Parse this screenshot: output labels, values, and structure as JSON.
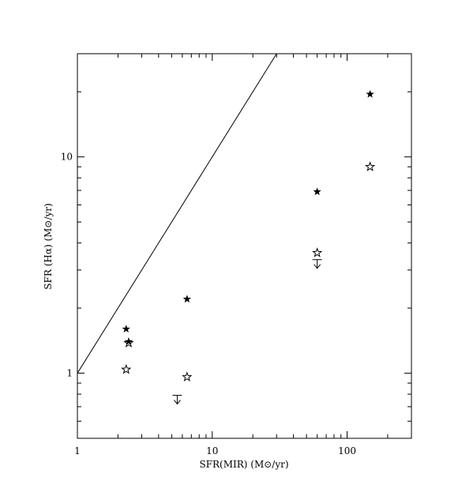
{
  "chart_data": {
    "type": "scatter",
    "title": "",
    "xlabel": "SFR(MIR)  (M⊙/yr)",
    "ylabel": "SFR (Hα)  (M⊙/yr)",
    "x_scale": "log",
    "y_scale": "log",
    "xlim": [
      1,
      300
    ],
    "ylim": [
      0.5,
      30
    ],
    "x_tick_labels": [
      "1",
      "10",
      "100"
    ],
    "y_tick_labels": [
      "1",
      "10"
    ],
    "grid": false,
    "reference_line": {
      "slope": 1,
      "intercept": 0,
      "description": "y = x"
    },
    "series": [
      {
        "marker": "filled-star",
        "points": [
          {
            "x": 2.3,
            "y": 1.6
          },
          {
            "x": 2.4,
            "y": 1.4
          },
          {
            "x": 6.5,
            "y": 2.2
          },
          {
            "x": 60,
            "y": 6.9
          },
          {
            "x": 148,
            "y": 19.5
          }
        ]
      },
      {
        "marker": "open-star",
        "points": [
          {
            "x": 2.4,
            "y": 1.38
          },
          {
            "x": 2.3,
            "y": 1.04
          },
          {
            "x": 6.5,
            "y": 0.96
          },
          {
            "x": 60,
            "y": 3.6
          },
          {
            "x": 148,
            "y": 9.0
          }
        ]
      },
      {
        "marker": "upper-limit",
        "points": [
          {
            "x": 5.5,
            "y": 0.79
          },
          {
            "x": 60,
            "y": 3.35
          }
        ]
      }
    ]
  }
}
